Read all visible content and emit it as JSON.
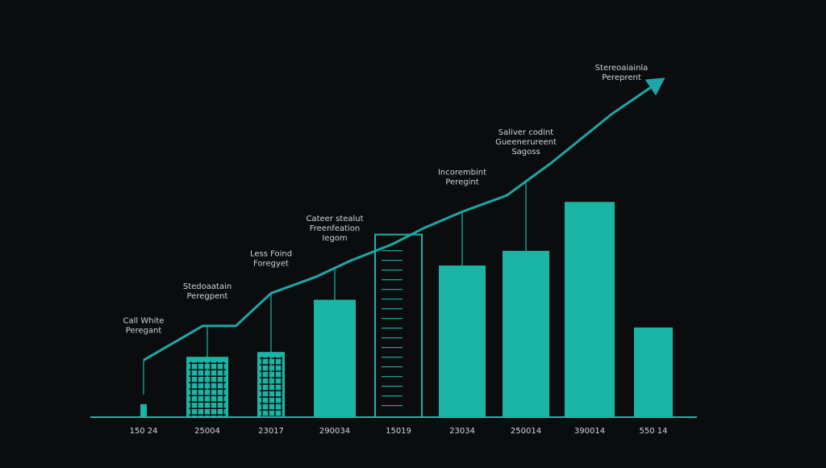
{
  "colors": {
    "background": "#0a0c0d",
    "accent": "#1bb5a6",
    "line": "#1ea6a6",
    "text": "#cfd6d6",
    "leader": "#1bb5a6"
  },
  "chart_data": {
    "type": "bar",
    "title": "",
    "xlabel": "",
    "ylabel": "",
    "categories": [
      "150 24",
      "25004",
      "23017",
      "290034",
      "15019",
      "23034",
      "250014",
      "390014",
      "550 14"
    ],
    "values": [
      0.8,
      3.7,
      4.0,
      7.2,
      11.2,
      9.3,
      10.2,
      13.2,
      5.5
    ],
    "ylim": [
      0,
      24
    ],
    "grid": false,
    "series": [
      {
        "type": "line",
        "x": [
          0,
          0.93,
          1.45,
          2.0,
          2.7,
          3.25,
          3.9,
          4.4,
          5.0,
          5.7,
          6.4,
          7.35,
          8.1
        ],
        "values": [
          3.5,
          5.6,
          5.6,
          7.6,
          8.6,
          9.6,
          10.6,
          11.6,
          12.6,
          13.6,
          15.6,
          18.6,
          20.6
        ]
      }
    ],
    "annotations": [
      {
        "x": 0.0,
        "lines": [
          "Call White",
          "Peregant"
        ]
      },
      {
        "x": 1.0,
        "lines": [
          "Stedoaatain",
          "Peregpent"
        ]
      },
      {
        "x": 2.0,
        "lines": [
          "Less Foind",
          "Foregyet"
        ]
      },
      {
        "x": 3.0,
        "lines": [
          "Cateer stealut",
          "Freenfeation",
          "Iegom"
        ]
      },
      {
        "x": 5.0,
        "lines": [
          "Incorembint",
          "Peregint"
        ]
      },
      {
        "x": 6.0,
        "lines": [
          "Saliver codint",
          "Gueenerureent",
          "Sagoss"
        ]
      },
      {
        "x": 7.5,
        "lines": [
          "Stereoaiainla",
          "Pereprent"
        ]
      }
    ]
  }
}
